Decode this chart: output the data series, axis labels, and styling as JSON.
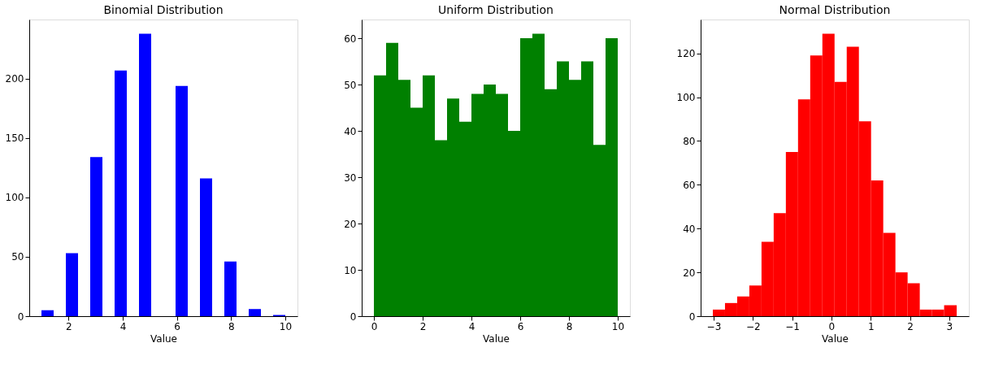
{
  "chart_data": [
    {
      "type": "histogram",
      "title": "Binomial Distribution",
      "xlabel": "Value",
      "color": "#0000ff",
      "bins": [
        1,
        1.45,
        1.9,
        2.35,
        2.8,
        3.25,
        3.7,
        4.15,
        4.6,
        5.05,
        5.5,
        5.95,
        6.4,
        6.85,
        7.3,
        7.75,
        8.2,
        8.65,
        9.1,
        9.55,
        10
      ],
      "values": [
        5,
        0,
        53,
        0,
        134,
        0,
        207,
        0,
        238,
        0,
        0,
        194,
        0,
        116,
        0,
        46,
        0,
        6,
        0,
        1
      ],
      "xlim": [
        0.55,
        10.45
      ],
      "ylim": [
        0,
        249.9
      ],
      "xticks": [
        2,
        4,
        6,
        8,
        10
      ],
      "yticks": [
        0,
        50,
        100,
        150,
        200
      ],
      "grid": false
    },
    {
      "type": "histogram",
      "title": "Uniform Distribution",
      "xlabel": "Value",
      "color": "#008000",
      "bins": [
        0,
        0.5,
        1,
        1.5,
        2,
        2.5,
        3,
        3.5,
        4,
        4.5,
        5,
        5.5,
        6,
        6.5,
        7,
        7.5,
        8,
        8.5,
        9,
        9.5,
        10
      ],
      "values": [
        52,
        59,
        51,
        45,
        52,
        38,
        47,
        42,
        48,
        50,
        48,
        40,
        60,
        61,
        49,
        55,
        51,
        55,
        37,
        60
      ],
      "xlim": [
        -0.5,
        10.5
      ],
      "ylim": [
        0,
        64.05
      ],
      "xticks": [
        0,
        2,
        4,
        6,
        8,
        10
      ],
      "yticks": [
        0,
        10,
        20,
        30,
        40,
        50,
        60
      ],
      "grid": false
    },
    {
      "type": "histogram",
      "title": "Normal Distribution",
      "xlabel": "Value",
      "color": "#ff0000",
      "bins": [
        -3.02,
        -2.71,
        -2.4,
        -2.09,
        -1.78,
        -1.47,
        -1.16,
        -0.85,
        -0.54,
        -0.23,
        0.08,
        0.39,
        0.7,
        1.01,
        1.32,
        1.63,
        1.94,
        2.25,
        2.56,
        2.87,
        3.19
      ],
      "values": [
        3,
        6,
        9,
        14,
        34,
        47,
        75,
        99,
        119,
        129,
        107,
        123,
        89,
        62,
        38,
        20,
        15,
        3,
        3,
        5
      ],
      "xlim": [
        -3.33,
        3.5
      ],
      "ylim": [
        0,
        135.45
      ],
      "xticks": [
        {
          "value": -3,
          "label": "−3"
        },
        {
          "value": -2,
          "label": "−2"
        },
        {
          "value": -1,
          "label": "−1"
        },
        0,
        1,
        2,
        3
      ],
      "yticks": [
        0,
        20,
        40,
        60,
        80,
        100,
        120
      ],
      "grid": false
    }
  ]
}
